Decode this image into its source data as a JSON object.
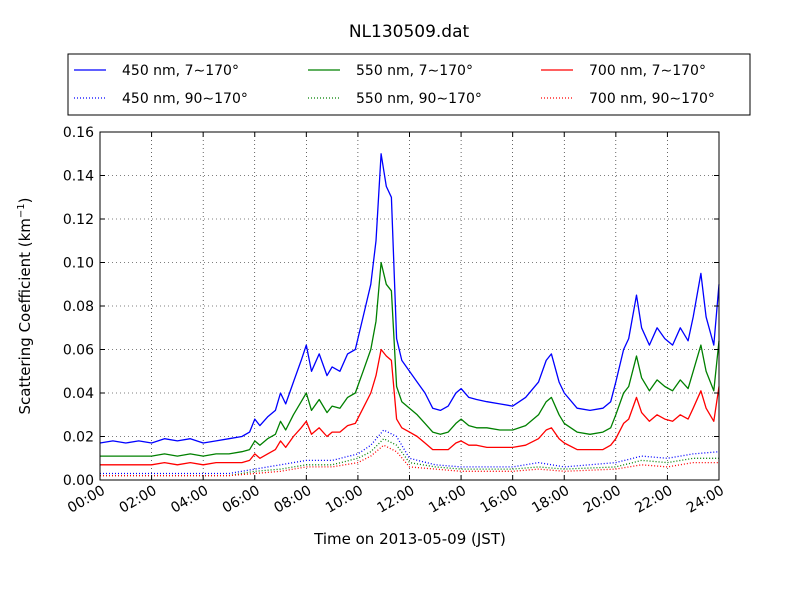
{
  "chart_data": {
    "type": "line",
    "title": "NL130509.dat",
    "xlabel": "Time on 2013-05-09 (JST)",
    "ylabel": "Scattering Coefficient (km",
    "ylabel_sup": "−1",
    "ylabel_close": ")",
    "xlim": [
      0,
      24
    ],
    "ylim": [
      0,
      0.16
    ],
    "grid": true,
    "legend_position": "top",
    "x_ticks": [
      0,
      2,
      4,
      6,
      8,
      10,
      12,
      14,
      16,
      18,
      20,
      22,
      24
    ],
    "x_tick_labels": [
      "00:00",
      "02:00",
      "04:00",
      "06:00",
      "08:00",
      "10:00",
      "12:00",
      "14:00",
      "16:00",
      "18:00",
      "20:00",
      "22:00",
      "24:00"
    ],
    "y_ticks": [
      0,
      0.02,
      0.04,
      0.06,
      0.08,
      0.1,
      0.12,
      0.14,
      0.16
    ],
    "y_tick_labels": [
      "0.00",
      "0.02",
      "0.04",
      "0.06",
      "0.08",
      "0.10",
      "0.12",
      "0.14",
      "0.16"
    ],
    "x_unit": "hours",
    "series": [
      {
        "name": "450 nm, 7∼170°",
        "color": "#0000ff",
        "style": "solid",
        "x": [
          0,
          0.5,
          1,
          1.5,
          2,
          2.5,
          3,
          3.5,
          4,
          4.5,
          5,
          5.5,
          5.8,
          6,
          6.2,
          6.5,
          6.8,
          7,
          7.2,
          7.5,
          7.8,
          8,
          8.2,
          8.5,
          8.8,
          9,
          9.3,
          9.6,
          9.9,
          10.2,
          10.5,
          10.7,
          10.9,
          11.1,
          11.3,
          11.5,
          11.7,
          12,
          12.3,
          12.6,
          12.9,
          13.2,
          13.5,
          13.8,
          14,
          14.3,
          14.6,
          15,
          15.5,
          16,
          16.5,
          17,
          17.3,
          17.5,
          17.8,
          18,
          18.5,
          19,
          19.5,
          19.8,
          20,
          20.3,
          20.5,
          20.8,
          21,
          21.3,
          21.6,
          21.9,
          22.2,
          22.5,
          22.8,
          23,
          23.3,
          23.5,
          23.8,
          24
        ],
        "y": [
          0.017,
          0.018,
          0.017,
          0.018,
          0.017,
          0.019,
          0.018,
          0.019,
          0.017,
          0.018,
          0.019,
          0.02,
          0.022,
          0.028,
          0.025,
          0.029,
          0.032,
          0.04,
          0.035,
          0.045,
          0.055,
          0.062,
          0.05,
          0.058,
          0.048,
          0.052,
          0.05,
          0.058,
          0.06,
          0.075,
          0.09,
          0.11,
          0.15,
          0.135,
          0.13,
          0.065,
          0.055,
          0.05,
          0.045,
          0.04,
          0.033,
          0.032,
          0.034,
          0.04,
          0.042,
          0.038,
          0.037,
          0.036,
          0.035,
          0.034,
          0.038,
          0.045,
          0.055,
          0.058,
          0.045,
          0.04,
          0.033,
          0.032,
          0.033,
          0.036,
          0.045,
          0.06,
          0.065,
          0.085,
          0.07,
          0.062,
          0.07,
          0.065,
          0.062,
          0.07,
          0.064,
          0.075,
          0.095,
          0.075,
          0.062,
          0.09
        ]
      },
      {
        "name": "550 nm, 7∼170°",
        "color": "#008000",
        "style": "solid",
        "x": [
          0,
          0.5,
          1,
          1.5,
          2,
          2.5,
          3,
          3.5,
          4,
          4.5,
          5,
          5.5,
          5.8,
          6,
          6.2,
          6.5,
          6.8,
          7,
          7.2,
          7.5,
          7.8,
          8,
          8.2,
          8.5,
          8.8,
          9,
          9.3,
          9.6,
          9.9,
          10.2,
          10.5,
          10.7,
          10.9,
          11.1,
          11.3,
          11.5,
          11.7,
          12,
          12.3,
          12.6,
          12.9,
          13.2,
          13.5,
          13.8,
          14,
          14.3,
          14.6,
          15,
          15.5,
          16,
          16.5,
          17,
          17.3,
          17.5,
          17.8,
          18,
          18.5,
          19,
          19.5,
          19.8,
          20,
          20.3,
          20.5,
          20.8,
          21,
          21.3,
          21.6,
          21.9,
          22.2,
          22.5,
          22.8,
          23,
          23.3,
          23.5,
          23.8,
          24
        ],
        "y": [
          0.011,
          0.011,
          0.011,
          0.011,
          0.011,
          0.012,
          0.011,
          0.012,
          0.011,
          0.012,
          0.012,
          0.013,
          0.014,
          0.018,
          0.016,
          0.019,
          0.021,
          0.027,
          0.023,
          0.03,
          0.036,
          0.04,
          0.032,
          0.037,
          0.031,
          0.034,
          0.033,
          0.038,
          0.04,
          0.05,
          0.06,
          0.073,
          0.1,
          0.09,
          0.087,
          0.043,
          0.036,
          0.033,
          0.03,
          0.026,
          0.022,
          0.021,
          0.022,
          0.026,
          0.028,
          0.025,
          0.024,
          0.024,
          0.023,
          0.023,
          0.025,
          0.03,
          0.036,
          0.038,
          0.03,
          0.026,
          0.022,
          0.021,
          0.022,
          0.024,
          0.03,
          0.04,
          0.043,
          0.057,
          0.047,
          0.041,
          0.046,
          0.043,
          0.041,
          0.046,
          0.042,
          0.05,
          0.062,
          0.05,
          0.041,
          0.064
        ]
      },
      {
        "name": "700 nm, 7∼170°",
        "color": "#ff0000",
        "style": "solid",
        "x": [
          0,
          0.5,
          1,
          1.5,
          2,
          2.5,
          3,
          3.5,
          4,
          4.5,
          5,
          5.5,
          5.8,
          6,
          6.2,
          6.5,
          6.8,
          7,
          7.2,
          7.5,
          7.8,
          8,
          8.2,
          8.5,
          8.8,
          9,
          9.3,
          9.6,
          9.9,
          10.2,
          10.5,
          10.7,
          10.9,
          11.1,
          11.3,
          11.5,
          11.7,
          12,
          12.3,
          12.6,
          12.9,
          13.2,
          13.5,
          13.8,
          14,
          14.3,
          14.6,
          15,
          15.5,
          16,
          16.5,
          17,
          17.3,
          17.5,
          17.8,
          18,
          18.5,
          19,
          19.5,
          19.8,
          20,
          20.3,
          20.5,
          20.8,
          21,
          21.3,
          21.6,
          21.9,
          22.2,
          22.5,
          22.8,
          23,
          23.3,
          23.5,
          23.8,
          24
        ],
        "y": [
          0.007,
          0.007,
          0.007,
          0.007,
          0.007,
          0.008,
          0.007,
          0.008,
          0.007,
          0.008,
          0.008,
          0.008,
          0.009,
          0.012,
          0.01,
          0.012,
          0.014,
          0.018,
          0.015,
          0.02,
          0.024,
          0.027,
          0.021,
          0.024,
          0.02,
          0.022,
          0.022,
          0.025,
          0.026,
          0.033,
          0.04,
          0.048,
          0.06,
          0.057,
          0.055,
          0.028,
          0.024,
          0.022,
          0.02,
          0.017,
          0.014,
          0.014,
          0.014,
          0.017,
          0.018,
          0.016,
          0.016,
          0.015,
          0.015,
          0.015,
          0.016,
          0.019,
          0.023,
          0.024,
          0.019,
          0.017,
          0.014,
          0.014,
          0.014,
          0.016,
          0.019,
          0.026,
          0.028,
          0.038,
          0.031,
          0.027,
          0.03,
          0.028,
          0.027,
          0.03,
          0.028,
          0.033,
          0.041,
          0.033,
          0.027,
          0.043
        ]
      },
      {
        "name": "450 nm, 90∼170°",
        "color": "#0000ff",
        "style": "dotted",
        "x": [
          0,
          2,
          4,
          5,
          6,
          7,
          8,
          9,
          10,
          10.5,
          11,
          11.5,
          12,
          13,
          14,
          16,
          17,
          18,
          20,
          21,
          22,
          23,
          24
        ],
        "y": [
          0.003,
          0.003,
          0.003,
          0.003,
          0.005,
          0.007,
          0.009,
          0.009,
          0.012,
          0.016,
          0.023,
          0.02,
          0.01,
          0.007,
          0.006,
          0.006,
          0.008,
          0.006,
          0.008,
          0.011,
          0.01,
          0.012,
          0.013
        ]
      },
      {
        "name": "550 nm, 90∼170°",
        "color": "#008000",
        "style": "dotted",
        "x": [
          0,
          2,
          4,
          5,
          6,
          7,
          8,
          9,
          10,
          10.5,
          11,
          11.5,
          12,
          13,
          14,
          16,
          17,
          18,
          20,
          21,
          22,
          23,
          24
        ],
        "y": [
          0.002,
          0.002,
          0.002,
          0.002,
          0.004,
          0.005,
          0.007,
          0.007,
          0.01,
          0.013,
          0.019,
          0.016,
          0.008,
          0.006,
          0.005,
          0.005,
          0.006,
          0.005,
          0.006,
          0.009,
          0.008,
          0.01,
          0.01
        ]
      },
      {
        "name": "700 nm, 90∼170°",
        "color": "#ff0000",
        "style": "dotted",
        "x": [
          0,
          2,
          4,
          5,
          6,
          7,
          8,
          9,
          10,
          10.5,
          11,
          11.5,
          12,
          13,
          14,
          16,
          17,
          18,
          20,
          21,
          22,
          23,
          24
        ],
        "y": [
          0.002,
          0.002,
          0.002,
          0.002,
          0.003,
          0.004,
          0.006,
          0.006,
          0.008,
          0.011,
          0.016,
          0.013,
          0.006,
          0.005,
          0.004,
          0.004,
          0.005,
          0.004,
          0.005,
          0.007,
          0.006,
          0.008,
          0.008
        ]
      }
    ]
  }
}
